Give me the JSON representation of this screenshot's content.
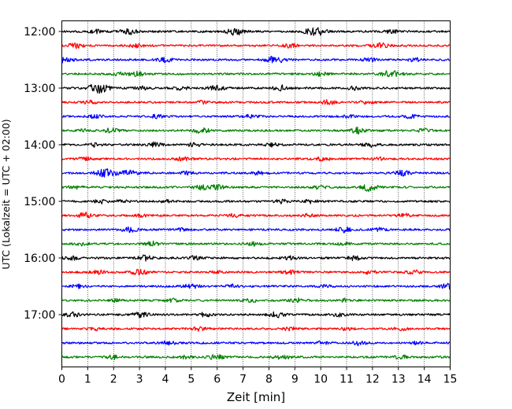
{
  "chart_data": {
    "type": "line",
    "title": "",
    "xlabel": "Zeit  [min]",
    "ylabel": "UTC (Lokalzeit = UTC + 02:00)",
    "xlim": [
      0,
      15
    ],
    "xticks": [
      "0",
      "1",
      "2",
      "3",
      "4",
      "5",
      "6",
      "7",
      "8",
      "9",
      "10",
      "11",
      "12",
      "13",
      "14",
      "15"
    ],
    "yticks": [
      "12:00",
      "13:00",
      "14:00",
      "15:00",
      "16:00",
      "17:00"
    ],
    "grid": "vertical-dotted",
    "trace_start": "12:00",
    "trace_interval_min": 15,
    "trace_count": 24,
    "color_cycle": [
      "#000000",
      "#ff0000",
      "#0000ff",
      "#008000"
    ],
    "events": [
      [
        [
          1.3,
          2
        ],
        [
          2.6,
          3
        ],
        [
          6.7,
          4
        ],
        [
          9.8,
          5
        ],
        [
          12.7,
          2
        ]
      ],
      [
        [
          0.5,
          3
        ],
        [
          2.9,
          2
        ],
        [
          8.8,
          2
        ],
        [
          12.3,
          3
        ]
      ],
      [
        [
          0.1,
          3
        ],
        [
          4.0,
          2.5
        ],
        [
          8.2,
          4
        ],
        [
          11.9,
          2
        ],
        [
          13.6,
          2
        ]
      ],
      [
        [
          2.2,
          2
        ],
        [
          2.9,
          2.5
        ],
        [
          10.0,
          2
        ],
        [
          12.7,
          4
        ]
      ],
      [
        [
          1.3,
          4
        ],
        [
          1.6,
          3
        ],
        [
          3.1,
          2
        ],
        [
          4.6,
          2
        ],
        [
          6.0,
          3
        ],
        [
          8.5,
          3
        ],
        [
          11.3,
          2
        ]
      ],
      [
        [
          1.1,
          2
        ],
        [
          5.4,
          1.5
        ],
        [
          10.3,
          2.5
        ],
        [
          11.8,
          2
        ]
      ],
      [
        [
          1.3,
          2
        ],
        [
          3.7,
          2
        ],
        [
          7.3,
          2
        ],
        [
          11.1,
          1.5
        ],
        [
          13.5,
          2
        ]
      ],
      [
        [
          0.9,
          2
        ],
        [
          1.9,
          2.5
        ],
        [
          5.4,
          3
        ],
        [
          11.4,
          3.5
        ],
        [
          14.0,
          2
        ]
      ],
      [
        [
          1.3,
          2
        ],
        [
          3.6,
          2.5
        ],
        [
          5.1,
          2
        ],
        [
          8.1,
          2
        ],
        [
          11.9,
          2.5
        ]
      ],
      [
        [
          0.9,
          2
        ],
        [
          4.7,
          2
        ],
        [
          10.1,
          2
        ],
        [
          12.3,
          1.5
        ]
      ],
      [
        [
          1.7,
          5
        ],
        [
          2.6,
          3
        ],
        [
          4.8,
          2
        ],
        [
          7.6,
          2
        ],
        [
          13.2,
          3
        ]
      ],
      [
        [
          0.5,
          2
        ],
        [
          5.4,
          3
        ],
        [
          6.0,
          2.5
        ],
        [
          9.9,
          2
        ],
        [
          11.8,
          2
        ],
        [
          11.9,
          2.5
        ]
      ],
      [
        [
          1.5,
          2
        ],
        [
          2.3,
          2
        ],
        [
          4.0,
          1.5
        ],
        [
          8.5,
          2
        ],
        [
          9.6,
          2
        ]
      ],
      [
        [
          0.9,
          3
        ],
        [
          3.1,
          1.5
        ],
        [
          6.7,
          2
        ],
        [
          9.5,
          1.5
        ],
        [
          13.2,
          2
        ]
      ],
      [
        [
          2.6,
          3
        ],
        [
          4.6,
          1.5
        ],
        [
          10.9,
          3
        ],
        [
          12.2,
          2
        ]
      ],
      [
        [
          0.7,
          2
        ],
        [
          3.5,
          2.5
        ],
        [
          7.4,
          2
        ],
        [
          10.9,
          1.5
        ]
      ],
      [
        [
          0.4,
          2
        ],
        [
          3.2,
          3
        ],
        [
          5.1,
          2
        ],
        [
          8.8,
          2
        ],
        [
          11.3,
          2.5
        ]
      ],
      [
        [
          1.4,
          2
        ],
        [
          3.0,
          3
        ],
        [
          6.0,
          1.5
        ],
        [
          8.8,
          2
        ],
        [
          11.9,
          2
        ],
        [
          13.6,
          2
        ]
      ],
      [
        [
          0.6,
          2
        ],
        [
          5.0,
          3
        ],
        [
          6.6,
          2
        ],
        [
          10.2,
          2
        ],
        [
          14.9,
          2.5
        ]
      ],
      [
        [
          2.1,
          1.5
        ],
        [
          4.3,
          2
        ],
        [
          7.3,
          2
        ],
        [
          9.1,
          2.5
        ],
        [
          11.0,
          2
        ]
      ],
      [
        [
          0.4,
          2.5
        ],
        [
          3.0,
          3
        ],
        [
          5.5,
          2.5
        ],
        [
          8.3,
          3
        ],
        [
          10.7,
          2
        ]
      ],
      [
        [
          1.3,
          1.5
        ],
        [
          5.3,
          2
        ],
        [
          8.8,
          2
        ],
        [
          11.0,
          1.5
        ],
        [
          13.1,
          2
        ]
      ],
      [
        [
          4.1,
          2
        ],
        [
          10.0,
          2
        ],
        [
          11.5,
          2.5
        ],
        [
          13.7,
          1.5
        ]
      ],
      [
        [
          2.0,
          2
        ],
        [
          4.8,
          1.5
        ],
        [
          6.0,
          3
        ],
        [
          8.5,
          2.5
        ],
        [
          13.1,
          2
        ]
      ]
    ]
  }
}
